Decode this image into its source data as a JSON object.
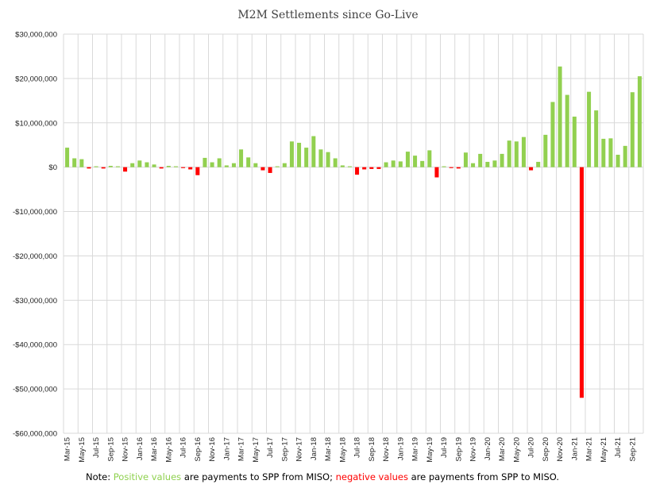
{
  "chart_data": {
    "type": "bar",
    "title": "M2M Settlements since Go-Live",
    "xlabel": "",
    "ylabel": "",
    "ylim": [
      -60000000,
      30000000
    ],
    "yticks": [
      30000000,
      20000000,
      10000000,
      0,
      -10000000,
      -20000000,
      -30000000,
      -40000000,
      -50000000,
      -60000000
    ],
    "ytick_labels": [
      "$30,000,000",
      "$20,000,000",
      "$10,000,000",
      "$0",
      "-$10,000,000",
      "-$20,000,000",
      "-$30,000,000",
      "-$40,000,000",
      "-$50,000,000",
      "-$60,000,000"
    ],
    "grid": true,
    "colors": {
      "positive": "#92d050",
      "negative": "#ff0000",
      "grid": "#d9d9d9"
    },
    "categories": [
      "Mar-15",
      "Apr-15",
      "May-15",
      "Jun-15",
      "Jul-15",
      "Aug-15",
      "Sep-15",
      "Oct-15",
      "Nov-15",
      "Dec-15",
      "Jan-16",
      "Feb-16",
      "Mar-16",
      "Apr-16",
      "May-16",
      "Jun-16",
      "Jul-16",
      "Aug-16",
      "Sep-16",
      "Oct-16",
      "Nov-16",
      "Dec-16",
      "Jan-17",
      "Feb-17",
      "Mar-17",
      "Apr-17",
      "May-17",
      "Jun-17",
      "Jul-17",
      "Aug-17",
      "Sep-17",
      "Oct-17",
      "Nov-17",
      "Dec-17",
      "Jan-18",
      "Feb-18",
      "Mar-18",
      "Apr-18",
      "May-18",
      "Jun-18",
      "Jul-18",
      "Aug-18",
      "Sep-18",
      "Oct-18",
      "Nov-18",
      "Dec-18",
      "Jan-19",
      "Feb-19",
      "Mar-19",
      "Apr-19",
      "May-19",
      "Jun-19",
      "Jul-19",
      "Aug-19",
      "Sep-19",
      "Oct-19",
      "Nov-19",
      "Dec-19",
      "Jan-20",
      "Feb-20",
      "Mar-20",
      "Apr-20",
      "May-20",
      "Jun-20",
      "Jul-20",
      "Aug-20",
      "Sep-20",
      "Oct-20",
      "Nov-20",
      "Dec-20",
      "Jan-21",
      "Feb-21",
      "Mar-21",
      "Apr-21",
      "May-21",
      "Jun-21",
      "Jul-21",
      "Aug-21",
      "Sep-21",
      "Oct-21"
    ],
    "x_tick_labels": [
      "Mar-15",
      "May-15",
      "Jul-15",
      "Sep-15",
      "Nov-15",
      "Jan-16",
      "Mar-16",
      "May-16",
      "Jul-16",
      "Sep-16",
      "Nov-16",
      "Jan-17",
      "Mar-17",
      "May-17",
      "Jul-17",
      "Sep-17",
      "Nov-17",
      "Jan-18",
      "Mar-18",
      "May-18",
      "Jul-18",
      "Sep-18",
      "Nov-18",
      "Jan-19",
      "Mar-19",
      "May-19",
      "Jul-19",
      "Sep-19",
      "Nov-19",
      "Jan-20",
      "Mar-20",
      "May-20",
      "Jul-20",
      "Sep-20",
      "Nov-20",
      "Jan-21",
      "Mar-21",
      "May-21",
      "Jul-21",
      "Sep-21"
    ],
    "values": [
      4400000,
      2000000,
      1800000,
      -300000,
      200000,
      -300000,
      300000,
      200000,
      -1000000,
      900000,
      1500000,
      1100000,
      600000,
      -300000,
      300000,
      200000,
      -200000,
      -500000,
      -1800000,
      2100000,
      1100000,
      2000000,
      400000,
      900000,
      4000000,
      2200000,
      900000,
      -700000,
      -1300000,
      200000,
      900000,
      5800000,
      5500000,
      4400000,
      7000000,
      4000000,
      3400000,
      2000000,
      400000,
      200000,
      -1700000,
      -500000,
      -400000,
      -400000,
      1100000,
      1500000,
      1300000,
      3500000,
      2600000,
      1400000,
      3800000,
      -2300000,
      200000,
      -200000,
      -300000,
      3300000,
      900000,
      3000000,
      1200000,
      1500000,
      3000000,
      6000000,
      5800000,
      6800000,
      -700000,
      1200000,
      7300000,
      14700000,
      22700000,
      16300000,
      11400000,
      -52000000,
      17000000,
      12800000,
      6400000,
      6500000,
      2800000,
      4800000,
      16900000,
      20500000
    ]
  },
  "note": {
    "prefix": "Note:  ",
    "positive": "Positive values",
    "middle": " are payments to SPP from MISO; ",
    "negative": "negative values",
    "suffix": " are payments from SPP to MISO."
  }
}
